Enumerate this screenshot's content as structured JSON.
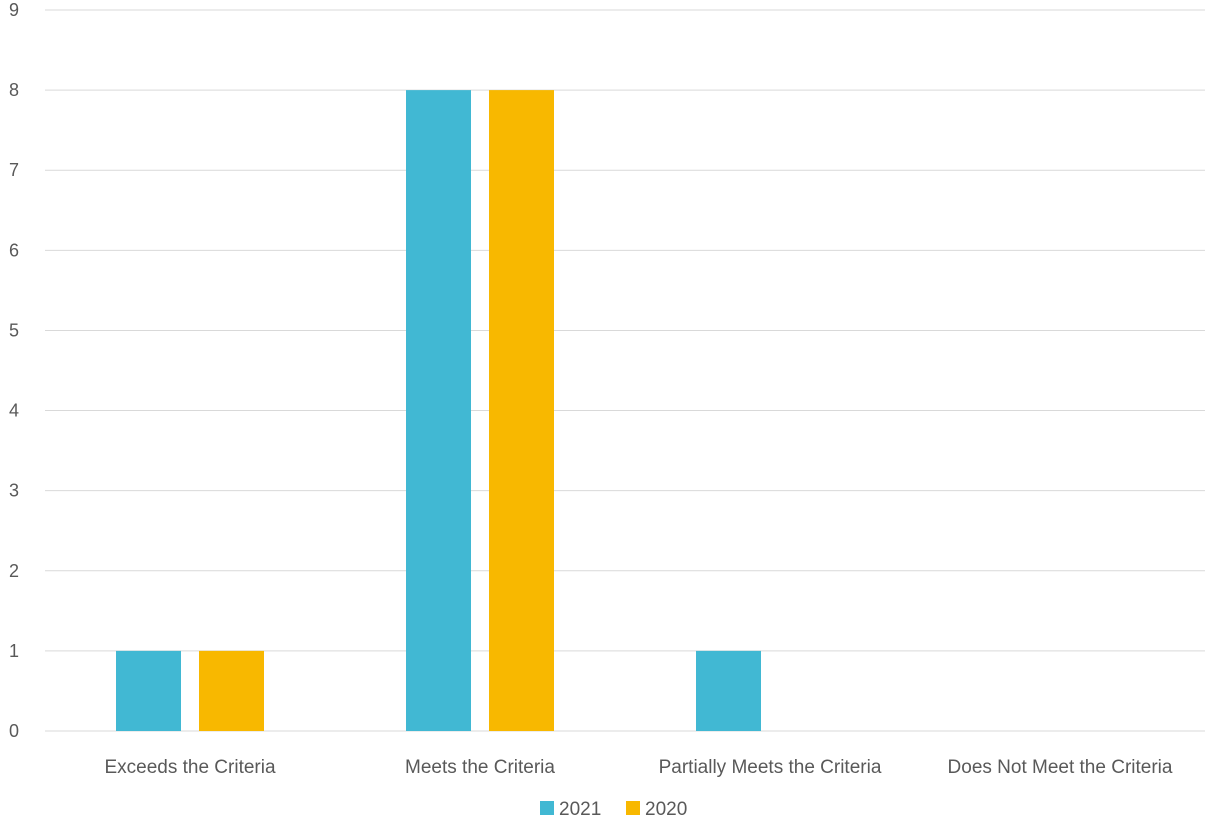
{
  "chart_data": {
    "type": "bar",
    "title": "",
    "xlabel": "",
    "ylabel": "",
    "categories": [
      "Exceeds the Criteria",
      "Meets the Criteria",
      "Partially Meets the Criteria",
      "Does Not Meet the Criteria"
    ],
    "series": [
      {
        "name": "2021",
        "color": "#41b8d3",
        "values": [
          1,
          8,
          1,
          0
        ]
      },
      {
        "name": "2020",
        "color": "#f8b800",
        "values": [
          1,
          8,
          0,
          0
        ]
      }
    ],
    "ylim": [
      0,
      9
    ],
    "yticks": [
      "0",
      "1",
      "2",
      "3",
      "4",
      "5",
      "6",
      "7",
      "8",
      "9"
    ],
    "grid": true,
    "legend": "bottom-center"
  }
}
